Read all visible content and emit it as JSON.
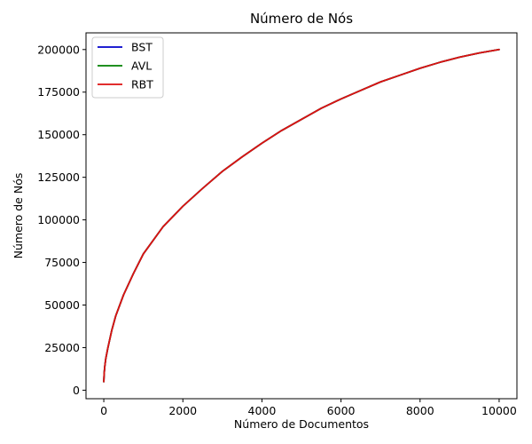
{
  "chart_data": {
    "type": "line",
    "title": "Número de Nós",
    "xlabel": "Número de Documentos",
    "ylabel": "Número de Nós",
    "xlim": [
      -450,
      10450
    ],
    "ylim": [
      -5000,
      209800
    ],
    "x_ticks": [
      0,
      2000,
      4000,
      6000,
      8000,
      10000
    ],
    "y_ticks": [
      0,
      25000,
      50000,
      75000,
      100000,
      125000,
      150000,
      175000,
      200000
    ],
    "x_tick_labels": [
      "0",
      "2000",
      "4000",
      "6000",
      "8000",
      "10000"
    ],
    "y_tick_labels": [
      "0",
      "25000",
      "50000",
      "75000",
      "100000",
      "125000",
      "150000",
      "175000",
      "200000"
    ],
    "grid": false,
    "legend_position": "top-left",
    "x": [
      0,
      10,
      25,
      50,
      100,
      200,
      300,
      500,
      750,
      1000,
      1500,
      2000,
      2500,
      3000,
      3500,
      4000,
      4500,
      5000,
      5500,
      6000,
      6500,
      7000,
      7500,
      8000,
      8500,
      9000,
      9500,
      10000
    ],
    "series": [
      {
        "name": "BST",
        "color": "#0000cc",
        "values": [
          5000,
          10000,
          14000,
          18500,
          24500,
          35000,
          43500,
          56000,
          68500,
          80000,
          96000,
          108000,
          118500,
          128500,
          137000,
          145000,
          152500,
          159000,
          165500,
          171000,
          176000,
          181000,
          185000,
          189000,
          192500,
          195500,
          198000,
          200000
        ]
      },
      {
        "name": "AVL",
        "color": "#008000",
        "values": [
          5000,
          10000,
          14000,
          18500,
          24500,
          35000,
          43500,
          56000,
          68500,
          80000,
          96000,
          108000,
          118500,
          128500,
          137000,
          145000,
          152500,
          159000,
          165500,
          171000,
          176000,
          181000,
          185000,
          189000,
          192500,
          195500,
          198000,
          200000
        ]
      },
      {
        "name": "RBT",
        "color": "#dd1111",
        "values": [
          5000,
          10000,
          14000,
          18500,
          24500,
          35000,
          43500,
          56000,
          68500,
          80000,
          96000,
          108000,
          118500,
          128500,
          137000,
          145000,
          152500,
          159000,
          165500,
          171000,
          176000,
          181000,
          185000,
          189000,
          192500,
          195500,
          198000,
          200000
        ]
      }
    ]
  }
}
